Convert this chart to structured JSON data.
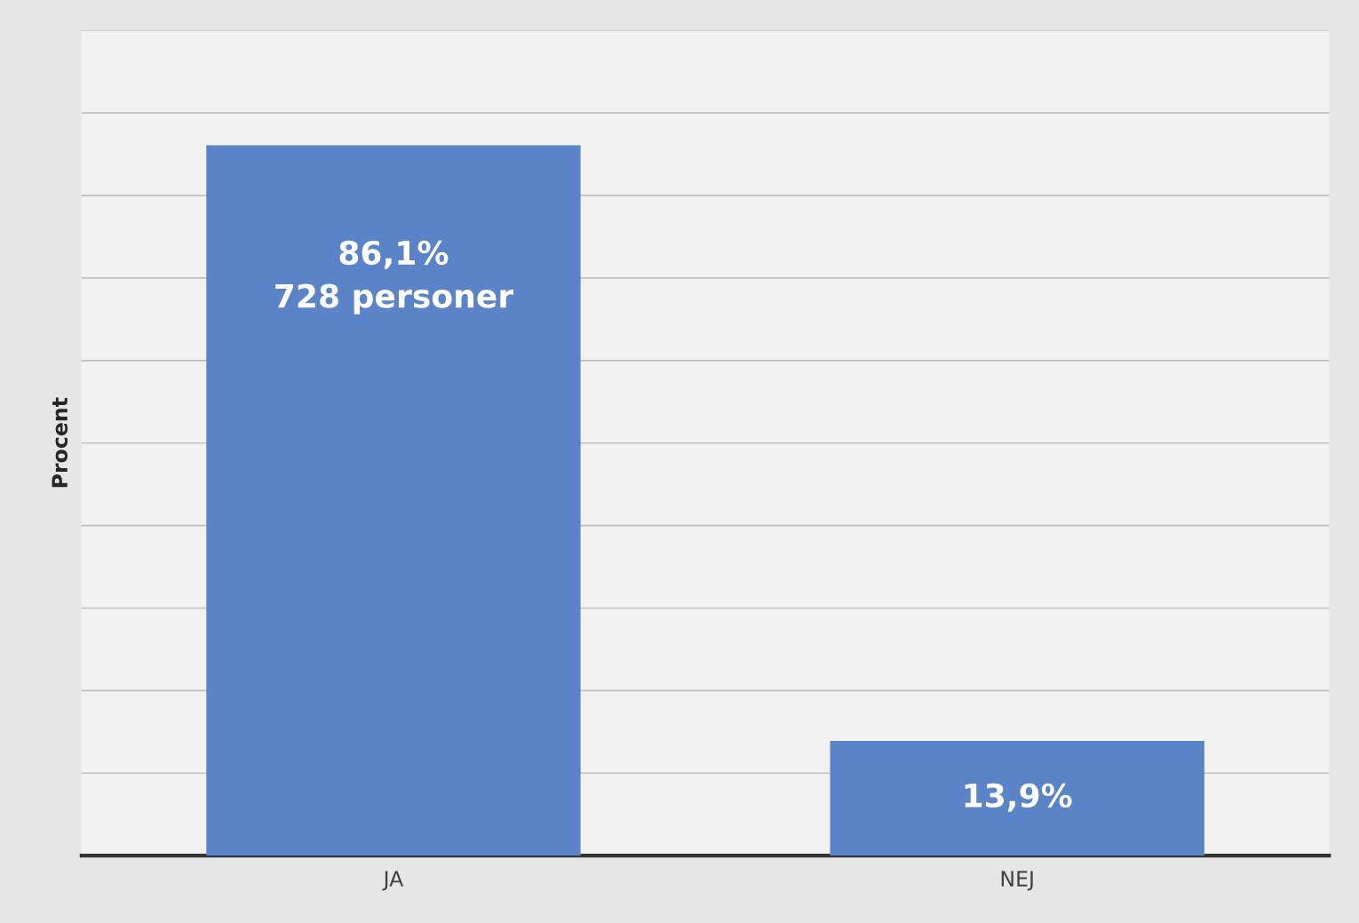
{
  "chart_data": {
    "type": "bar",
    "ylabel": "Procent",
    "categories": [
      "JA",
      "NEJ"
    ],
    "values": [
      86.1,
      13.9
    ],
    "value_labels": [
      "86,1%\n728 personer",
      "13,9%"
    ],
    "color": "#5b84c8",
    "ylim": [
      0,
      100
    ],
    "yticks": [
      {
        "value": 0,
        "label": null
      },
      {
        "value": 10,
        "label": null
      },
      {
        "value": 20,
        "label": null
      },
      {
        "value": 30,
        "label": null
      },
      {
        "value": 40,
        "label": null
      },
      {
        "value": 50,
        "label": null
      },
      {
        "value": 60,
        "label": null
      },
      {
        "value": 70,
        "label": null
      },
      {
        "value": 80,
        "label": null
      },
      {
        "value": 90,
        "label": null
      },
      {
        "value": 100,
        "label": null
      }
    ],
    "grid": "y",
    "tick_labels": "x"
  }
}
